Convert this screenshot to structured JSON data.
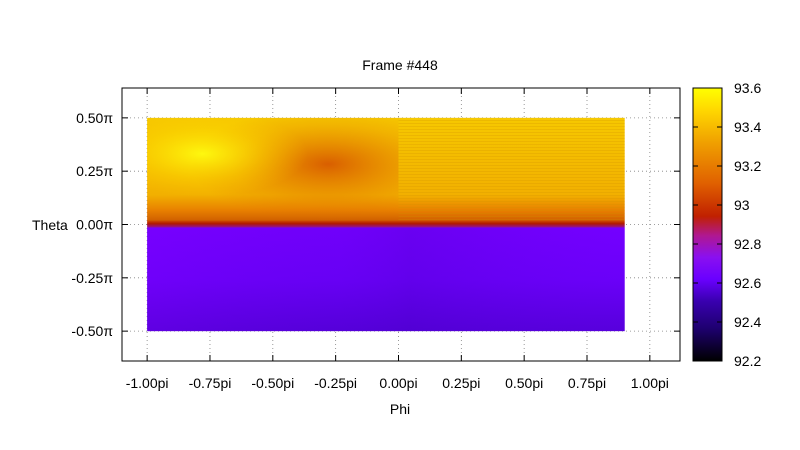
{
  "chart_data": {
    "type": "heatmap",
    "title": "Frame #448",
    "xlabel": "Phi",
    "ylabel": "Theta",
    "xlim": [
      -1.1,
      1.12
    ],
    "ylim": [
      -0.64,
      0.64
    ],
    "data_extent": {
      "x": [
        -1.0,
        0.9
      ],
      "y": [
        -0.5,
        0.5
      ]
    },
    "x_ticks": [
      {
        "value": -1.0,
        "label": "-1.00pi"
      },
      {
        "value": -0.75,
        "label": "-0.75pi"
      },
      {
        "value": -0.5,
        "label": "-0.50pi"
      },
      {
        "value": -0.25,
        "label": "-0.25pi"
      },
      {
        "value": 0.0,
        "label": "0.00pi"
      },
      {
        "value": 0.25,
        "label": "0.25pi"
      },
      {
        "value": 0.5,
        "label": "0.50pi"
      },
      {
        "value": 0.75,
        "label": "0.75pi"
      },
      {
        "value": 1.0,
        "label": "1.00pi"
      }
    ],
    "y_ticks": [
      {
        "value": 0.5,
        "label": "0.50π"
      },
      {
        "value": 0.25,
        "label": "0.25π"
      },
      {
        "value": 0.0,
        "label": "0.00π"
      },
      {
        "value": -0.25,
        "label": "-0.25π"
      },
      {
        "value": -0.5,
        "label": "-0.50π"
      }
    ],
    "colorbar": {
      "range": [
        92.2,
        93.6
      ],
      "ticks": [
        {
          "value": 93.6,
          "label": "93.6"
        },
        {
          "value": 93.4,
          "label": "93.4"
        },
        {
          "value": 93.2,
          "label": "93.2"
        },
        {
          "value": 93.0,
          "label": "93"
        },
        {
          "value": 92.8,
          "label": "92.8"
        },
        {
          "value": 92.6,
          "label": "92.6"
        },
        {
          "value": 92.4,
          "label": "92.4"
        },
        {
          "value": 92.2,
          "label": "92.2"
        }
      ]
    },
    "grid": true,
    "palette": [
      "#000000",
      "#3a00a0",
      "#7a00ff",
      "#9a1ae0",
      "#c02000",
      "#e88000",
      "#ffc800",
      "#ffff00"
    ]
  }
}
